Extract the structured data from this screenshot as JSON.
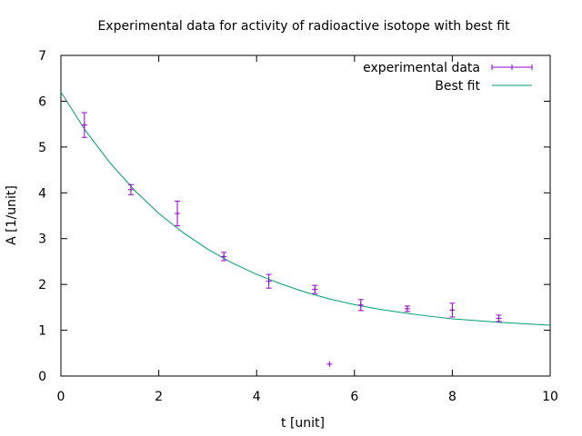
{
  "chart_data": {
    "type": "scatter",
    "title": "Experimental data for activity of radioactive isotope with best fit",
    "xlabel": "t [unit]",
    "ylabel": "A [1/unit]",
    "xlim": [
      0,
      10
    ],
    "ylim": [
      0,
      7
    ],
    "xticks": [
      "0",
      "2",
      "4",
      "6",
      "8",
      "10"
    ],
    "yticks": [
      "0",
      "1",
      "2",
      "3",
      "4",
      "5",
      "6",
      "7"
    ],
    "grid": false,
    "legend_position": "top-right",
    "series": [
      {
        "name": "experimental data",
        "kind": "points-with-errorbars",
        "color": "#9400d3",
        "points": [
          {
            "x": 0.48,
            "y": 5.48,
            "err": 0.27
          },
          {
            "x": 1.43,
            "y": 4.07,
            "err": 0.11
          },
          {
            "x": 2.38,
            "y": 3.55,
            "err": 0.27
          },
          {
            "x": 3.33,
            "y": 2.61,
            "err": 0.09
          },
          {
            "x": 4.25,
            "y": 2.07,
            "err": 0.15
          },
          {
            "x": 5.19,
            "y": 1.89,
            "err": 0.09
          },
          {
            "x": 5.49,
            "y": 0.26,
            "err": 0.0
          },
          {
            "x": 6.13,
            "y": 1.55,
            "err": 0.12
          },
          {
            "x": 7.08,
            "y": 1.47,
            "err": 0.06
          },
          {
            "x": 8.0,
            "y": 1.44,
            "err": 0.15
          },
          {
            "x": 8.95,
            "y": 1.26,
            "err": 0.07
          }
        ]
      },
      {
        "name": "Best fit",
        "kind": "line",
        "color": "#009e73",
        "x": [
          0,
          0.5,
          1,
          1.5,
          2,
          2.5,
          3,
          3.5,
          4,
          4.5,
          5,
          5.5,
          6,
          6.5,
          7,
          7.5,
          8,
          8.5,
          9,
          9.5,
          10
        ],
        "y": [
          6.2,
          5.36,
          4.66,
          4.06,
          3.55,
          3.13,
          2.77,
          2.47,
          2.22,
          2.01,
          1.83,
          1.68,
          1.56,
          1.46,
          1.38,
          1.31,
          1.25,
          1.21,
          1.17,
          1.14,
          1.11
        ]
      }
    ]
  }
}
